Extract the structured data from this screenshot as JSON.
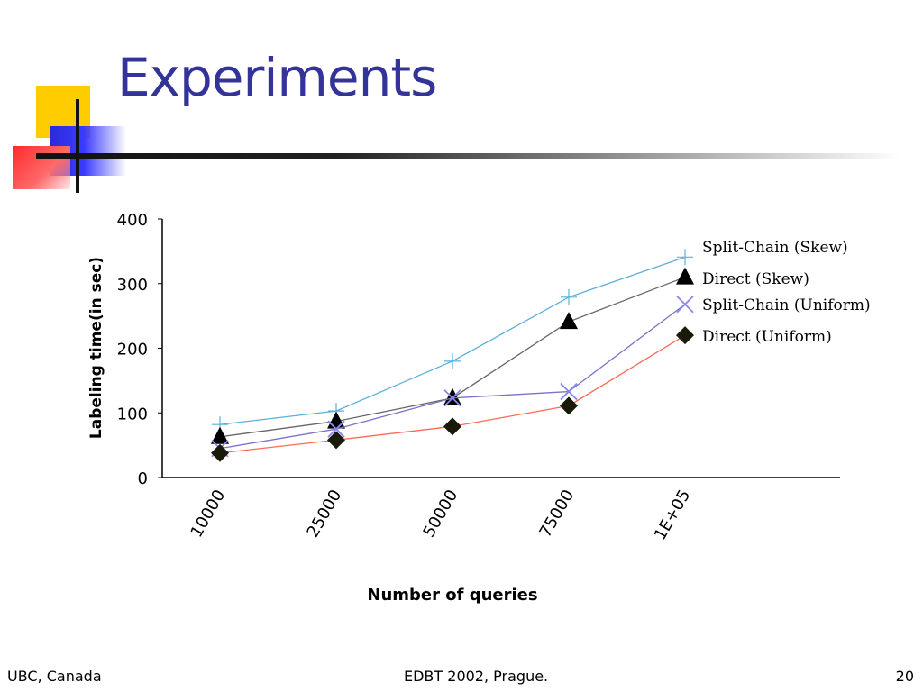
{
  "slide": {
    "title": "Experiments",
    "footer_left": "UBC, Canada",
    "footer_center": "EDBT 2002, Prague.",
    "footer_right": "20"
  },
  "chart_data": {
    "type": "line",
    "title": "",
    "xlabel": "Number of queries",
    "ylabel": "Labeling time(in sec)",
    "categories": [
      "10000",
      "25000",
      "50000",
      "75000",
      "1E+05"
    ],
    "ylim": [
      0,
      400
    ],
    "yticks": [
      "0",
      "100",
      "200",
      "300",
      "400"
    ],
    "grid": false,
    "legend_position": "right",
    "series": [
      {
        "name": "Split-Chain (Skew)",
        "values": [
          82,
          103,
          180,
          279,
          341
        ],
        "color": "#5ab0d8",
        "marker": "plus"
      },
      {
        "name": "Direct (Skew)",
        "values": [
          63,
          87,
          123,
          241,
          310
        ],
        "color": "#666666",
        "marker": "triangle"
      },
      {
        "name": "Split-Chain (Uniform)",
        "values": [
          45,
          75,
          123,
          133,
          268
        ],
        "color": "#7a74c8",
        "marker": "x"
      },
      {
        "name": "Direct (Uniform)",
        "values": [
          38,
          58,
          79,
          111,
          220
        ],
        "color": "#ff6a55",
        "marker": "diamond"
      }
    ]
  }
}
